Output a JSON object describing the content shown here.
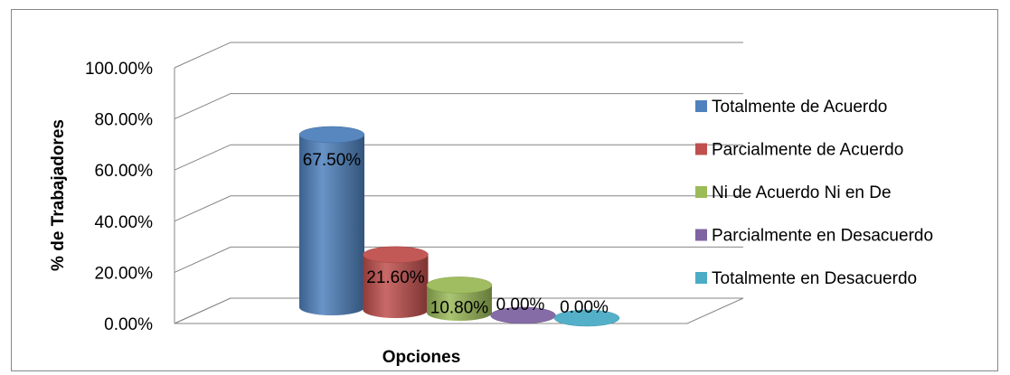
{
  "chart_data": {
    "type": "bar",
    "title": "",
    "xlabel": "Opciones",
    "ylabel": "% de Trabajadores",
    "ylim": [
      0,
      1
    ],
    "y_ticks": [
      "0.00%",
      "20.00%",
      "40.00%",
      "60.00%",
      "80.00%",
      "100.00%"
    ],
    "grid": true,
    "legend_position": "right",
    "series": [
      {
        "name": "Totalmente de Acuerdo",
        "value": 0.675,
        "label": "67.50%",
        "color": "#4F81BD"
      },
      {
        "name": "Parcialmente de Acuerdo",
        "value": 0.216,
        "label": "21.60%",
        "color": "#C0504D"
      },
      {
        "name": "Ni de Acuerdo Ni en De",
        "value": 0.108,
        "label": "10.80%",
        "color": "#9BBB59"
      },
      {
        "name": "Parcialmente en Desacuerdo",
        "value": 0.0,
        "label": "0.00%",
        "color": "#8064A2"
      },
      {
        "name": "Totalmente en Desacuerdo",
        "value": 0.0,
        "label": "0.00%",
        "color": "#4BACC6"
      }
    ]
  }
}
